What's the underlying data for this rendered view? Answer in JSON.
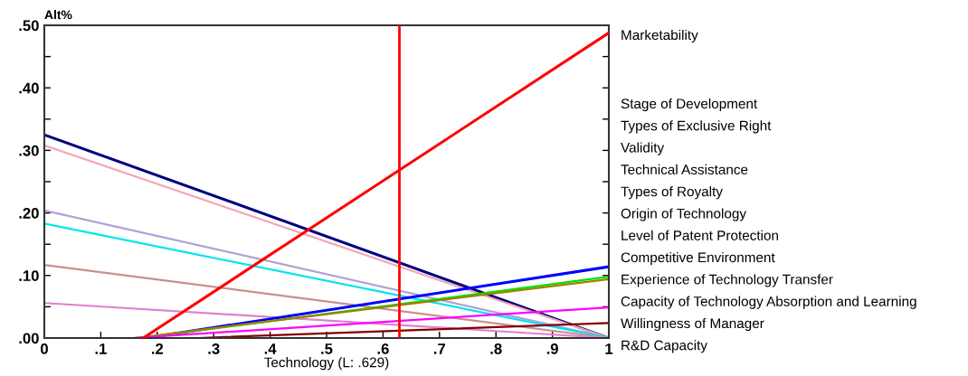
{
  "chart_data": {
    "type": "line",
    "xlabel": "Technology (L: .629)",
    "ylabel": "Alt%",
    "xlim": [
      0,
      1
    ],
    "ylim": [
      0,
      0.5
    ],
    "xticks": [
      {
        "value": 0,
        "label": "0"
      },
      {
        "value": 0.1,
        "label": ".1"
      },
      {
        "value": 0.2,
        "label": ".2"
      },
      {
        "value": 0.3,
        "label": ".3"
      },
      {
        "value": 0.4,
        "label": ".4"
      },
      {
        "value": 0.5,
        "label": ".5"
      },
      {
        "value": 0.6,
        "label": ".6"
      },
      {
        "value": 0.7,
        "label": ".7"
      },
      {
        "value": 0.8,
        "label": ".8"
      },
      {
        "value": 0.9,
        "label": ".9"
      },
      {
        "value": 1,
        "label": "1"
      }
    ],
    "yticks": [
      {
        "value": 0,
        "label": ".00"
      },
      {
        "value": 0.05,
        "label": null
      },
      {
        "value": 0.1,
        "label": ".10"
      },
      {
        "value": 0.15,
        "label": null
      },
      {
        "value": 0.2,
        "label": ".20"
      },
      {
        "value": 0.25,
        "label": null
      },
      {
        "value": 0.3,
        "label": ".30"
      },
      {
        "value": 0.35,
        "label": null
      },
      {
        "value": 0.4,
        "label": ".40"
      },
      {
        "value": 0.45,
        "label": null
      },
      {
        "value": 0.5,
        "label": ".50"
      }
    ],
    "grid": false,
    "legend": false,
    "marker": "none",
    "line_style": "solid",
    "series": [
      {
        "color": "#ff0000",
        "x": [
          0.175,
          1
        ],
        "values": [
          0,
          0.488
        ]
      },
      {
        "color": "#000080",
        "x": [
          0,
          1
        ],
        "values": [
          0.325,
          0
        ]
      },
      {
        "color": "#f4a6b4",
        "x": [
          0,
          1
        ],
        "values": [
          0.308,
          0
        ]
      },
      {
        "color": "#b0a0d8",
        "x": [
          0,
          1
        ],
        "values": [
          0.204,
          0
        ]
      },
      {
        "color": "#00e5ee",
        "x": [
          0,
          1
        ],
        "values": [
          0.183,
          0
        ]
      },
      {
        "color": "#c89090",
        "x": [
          0,
          1
        ],
        "values": [
          0.117,
          0
        ]
      },
      {
        "color": "#e080d0",
        "x": [
          0,
          1
        ],
        "values": [
          0.056,
          0
        ]
      },
      {
        "color": "#0000ff",
        "x": [
          0.18,
          1
        ],
        "values": [
          0,
          0.114
        ]
      },
      {
        "color": "#00e000",
        "x": [
          0.17,
          1
        ],
        "values": [
          0,
          0.098
        ]
      },
      {
        "color": "#a08000",
        "x": [
          0.16,
          1
        ],
        "values": [
          0,
          0.094
        ]
      },
      {
        "color": "#ff00ff",
        "x": [
          0.155,
          1
        ],
        "values": [
          0,
          0.049
        ]
      },
      {
        "color": "#800000",
        "x": [
          0.27,
          1
        ],
        "values": [
          0,
          0.024
        ]
      }
    ],
    "ref_lines": [
      {
        "axis": "x",
        "value": 0.629,
        "color": "#ff0000"
      }
    ],
    "annotations": [
      "Marketability",
      "Stage of Development",
      "Types of Exclusive Right",
      "Validity",
      "Technical Assistance",
      "Types of Royalty",
      "Origin of Technology",
      "Level of Patent Protection",
      "Competitive Environment",
      "Experience of Technology Transfer",
      "Capacity of Technology Absorption and Learning",
      "Willingness of Manager",
      "R&D Capacity"
    ]
  }
}
